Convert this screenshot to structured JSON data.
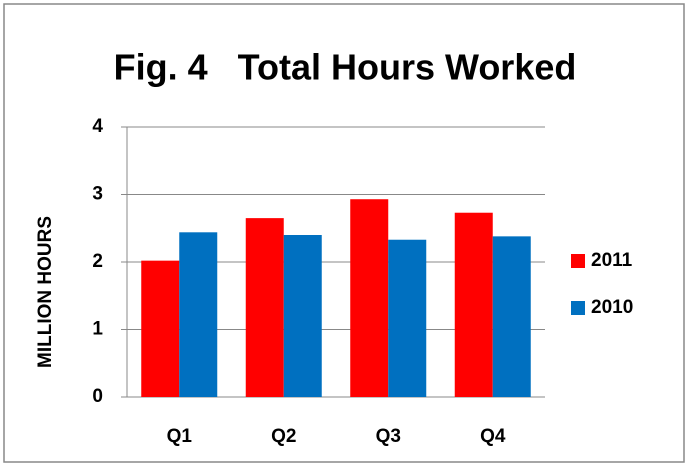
{
  "chart_data": {
    "type": "bar",
    "title": "Fig. 4   Total Hours Worked",
    "y_label": "MILLION HOURS",
    "categories": [
      "Q1",
      "Q2",
      "Q3",
      "Q4"
    ],
    "series": [
      {
        "name": "2011",
        "color": "#ff0000",
        "values": [
          2.02,
          2.65,
          2.93,
          2.73
        ]
      },
      {
        "name": "2010",
        "color": "#0070c0",
        "values": [
          2.44,
          2.4,
          2.33,
          2.38
        ]
      }
    ],
    "ylim": [
      0,
      4
    ],
    "yticks": [
      0,
      1,
      2,
      3,
      4
    ],
    "grid": true,
    "legend": "right"
  }
}
